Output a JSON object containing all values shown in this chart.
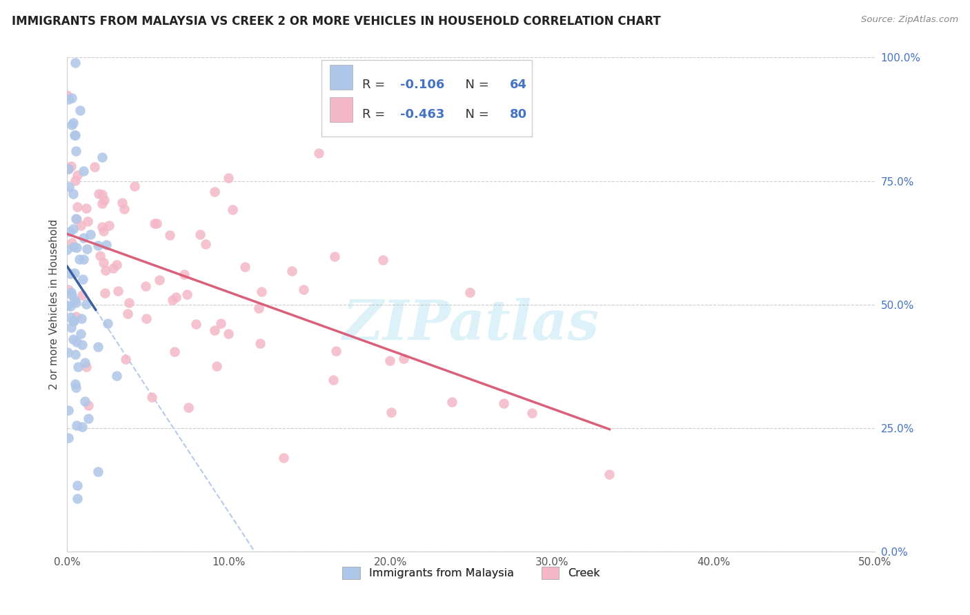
{
  "title": "IMMIGRANTS FROM MALAYSIA VS CREEK 2 OR MORE VEHICLES IN HOUSEHOLD CORRELATION CHART",
  "source": "Source: ZipAtlas.com",
  "ylabel": "2 or more Vehicles in Household",
  "xlim": [
    0.0,
    0.5
  ],
  "ylim": [
    0.0,
    1.0
  ],
  "xticks": [
    0.0,
    0.1,
    0.2,
    0.3,
    0.4,
    0.5
  ],
  "xticklabels": [
    "0.0%",
    "10.0%",
    "20.0%",
    "30.0%",
    "40.0%",
    "50.0%"
  ],
  "yticks": [
    0.0,
    0.25,
    0.5,
    0.75,
    1.0
  ],
  "yticklabels": [
    "0.0%",
    "25.0%",
    "50.0%",
    "75.0%",
    "100.0%"
  ],
  "malaysia_R": -0.106,
  "malaysia_N": 64,
  "creek_R": -0.463,
  "creek_N": 80,
  "malaysia_color": "#aec6e8",
  "creek_color": "#f4b8c8",
  "malaysia_line_color": "#3a5fa0",
  "creek_line_color": "#d95f7a",
  "dashed_line_color": "#aec6e8",
  "legend_label_malaysia": "Immigrants from Malaysia",
  "legend_label_creek": "Creek",
  "watermark": "ZIPatlas",
  "blue_text_color": "#4472c4",
  "title_color": "#222222",
  "source_color": "#888888",
  "ylabel_color": "#444444",
  "tick_color": "#4472c4"
}
